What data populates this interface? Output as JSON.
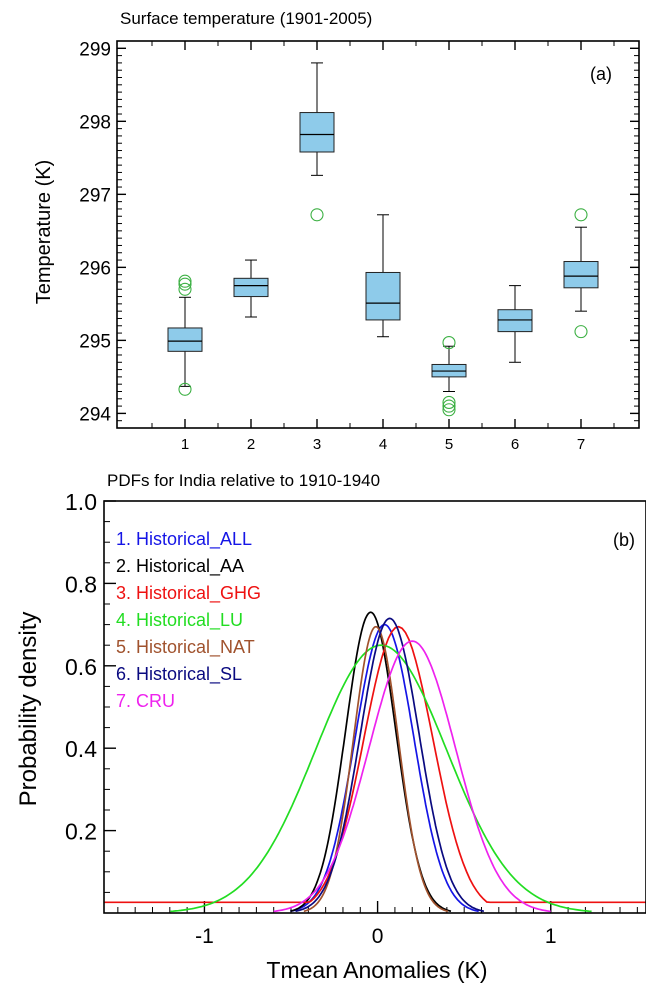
{
  "chart_data": [
    {
      "type": "box",
      "title": "Surface temperature (1901-2005)",
      "panel_label": "(a)",
      "xlabel": "",
      "ylabel": "Temperature (K)",
      "ylim": [
        293.8,
        299.1
      ],
      "yticks": [
        294,
        295,
        296,
        297,
        298,
        299
      ],
      "categories": [
        "1",
        "2",
        "3",
        "4",
        "5",
        "6",
        "7"
      ],
      "box_color": "#8ecbea",
      "outlier_color": "#3cb043",
      "boxes": [
        {
          "category": "1",
          "whisker_low": 294.37,
          "q1": 294.85,
          "median": 294.99,
          "q3": 295.17,
          "whisker_high": 295.59,
          "outliers": [
            294.33,
            295.7,
            295.77,
            295.81
          ]
        },
        {
          "category": "2",
          "whisker_low": 295.32,
          "q1": 295.6,
          "median": 295.75,
          "q3": 295.85,
          "whisker_high": 296.1,
          "outliers": []
        },
        {
          "category": "3",
          "whisker_low": 297.26,
          "q1": 297.58,
          "median": 297.82,
          "q3": 298.12,
          "whisker_high": 298.8,
          "outliers": [
            296.72
          ]
        },
        {
          "category": "4",
          "whisker_low": 295.05,
          "q1": 295.28,
          "median": 295.51,
          "q3": 295.93,
          "whisker_high": 296.72,
          "outliers": []
        },
        {
          "category": "5",
          "whisker_low": 294.3,
          "q1": 294.5,
          "median": 294.58,
          "q3": 294.67,
          "whisker_high": 294.92,
          "outliers": [
            294.97,
            294.15,
            294.1,
            294.05
          ]
        },
        {
          "category": "6",
          "whisker_low": 294.7,
          "q1": 295.12,
          "median": 295.28,
          "q3": 295.42,
          "whisker_high": 295.75,
          "outliers": []
        },
        {
          "category": "7",
          "whisker_low": 295.4,
          "q1": 295.72,
          "median": 295.88,
          "q3": 296.08,
          "whisker_high": 296.55,
          "outliers": [
            296.72,
            295.12
          ]
        }
      ]
    },
    {
      "type": "line",
      "title": "PDFs for India relative to 1910-1940",
      "panel_label": "(b)",
      "xlabel": "Tmean Anomalies (K)",
      "ylabel": "Probability density",
      "xlim": [
        -1.58,
        1.55
      ],
      "ylim": [
        0.0,
        1.0
      ],
      "xticks": [
        -1,
        0,
        1
      ],
      "yticks": [
        0.2,
        0.4,
        0.6,
        0.8,
        1.0
      ],
      "legend_position": "top-left",
      "baseline": 0.026,
      "series": [
        {
          "name": "1. Historical_ALL",
          "color": "#1515e6",
          "mean": 0.04,
          "peak": 0.7,
          "sd": 0.17
        },
        {
          "name": "2. Historical_AA",
          "color": "#000000",
          "mean": -0.04,
          "peak": 0.73,
          "sd": 0.145
        },
        {
          "name": "3. Historical_GHG",
          "color": "#ee1111",
          "mean": 0.12,
          "peak": 0.695,
          "sd": 0.2
        },
        {
          "name": "4. Historical_LU",
          "color": "#22dd22",
          "mean": 0.02,
          "peak": 0.65,
          "sd": 0.38
        },
        {
          "name": "5. Historical_NAT",
          "color": "#a0522d",
          "mean": -0.01,
          "peak": 0.695,
          "sd": 0.13
        },
        {
          "name": "6. Historical_SL",
          "color": "#0a0a80",
          "mean": 0.07,
          "peak": 0.715,
          "sd": 0.17
        },
        {
          "name": "7. CRU",
          "color": "#ee22ee",
          "mean": 0.2,
          "peak": 0.66,
          "sd": 0.25
        }
      ]
    }
  ]
}
